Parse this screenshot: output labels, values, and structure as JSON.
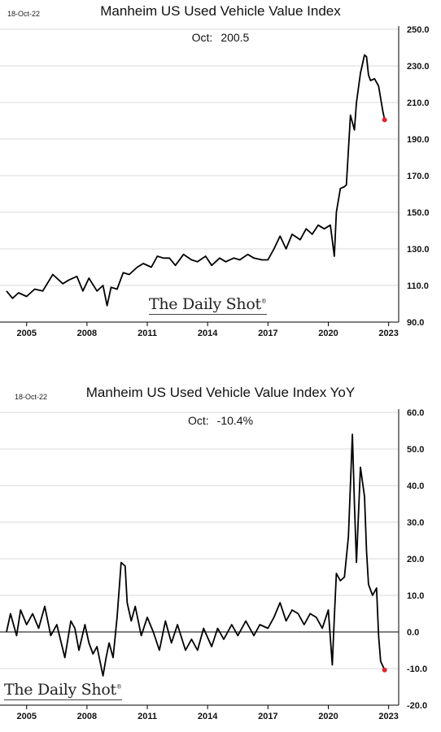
{
  "chart_data": [
    {
      "type": "line",
      "title": "Manheim US Used Vehicle Value Index",
      "date_stamp": "18-Oct-22",
      "latest": {
        "label": "Oct:",
        "value": "200.5"
      },
      "watermark": "The Daily Shot",
      "watermark_mark": "®",
      "x_ticks": [
        "2005",
        "2008",
        "2011",
        "2014",
        "2017",
        "2020",
        "2023"
      ],
      "y_ticks": [
        "90.0",
        "110.0",
        "130.0",
        "150.0",
        "170.0",
        "190.0",
        "210.0",
        "230.0",
        "250.0"
      ],
      "ylim": [
        90,
        250
      ],
      "xlim": [
        2004.0,
        2023.5
      ],
      "grid": true,
      "line_color": "#000000",
      "marker_color": "#e0262f",
      "series": [
        {
          "x": [
            2004.0,
            2004.3,
            2004.6,
            2005.0,
            2005.4,
            2005.8,
            2006.3,
            2006.8,
            2007.1,
            2007.5,
            2007.8,
            2008.1,
            2008.5,
            2008.8,
            2009.0,
            2009.2,
            2009.5,
            2009.8,
            2010.1,
            2010.5,
            2010.8,
            2011.2,
            2011.5,
            2011.8,
            2012.1,
            2012.4,
            2012.8,
            2013.2,
            2013.5,
            2013.9,
            2014.2,
            2014.6,
            2014.9,
            2015.3,
            2015.6,
            2016.0,
            2016.3,
            2016.7,
            2017.0,
            2017.3,
            2017.6,
            2017.9,
            2018.2,
            2018.6,
            2018.9,
            2019.2,
            2019.5,
            2019.8,
            2020.1,
            2020.3,
            2020.4,
            2020.6,
            2020.8,
            2020.9,
            2021.1,
            2021.3,
            2021.4,
            2021.6,
            2021.8,
            2021.9,
            2022.0,
            2022.1,
            2022.3,
            2022.5,
            2022.7,
            2022.8
          ],
          "y": [
            107,
            103,
            106,
            104,
            108,
            107,
            116,
            111,
            113,
            115,
            107,
            114,
            107,
            110,
            99,
            109,
            108,
            117,
            116,
            120,
            122,
            120,
            126,
            125,
            125,
            121,
            127,
            124,
            123,
            126,
            121,
            125,
            123,
            125,
            124,
            127,
            125,
            124,
            124,
            130,
            137,
            130,
            138,
            135,
            141,
            138,
            143,
            141,
            143,
            126,
            150,
            163,
            164,
            165,
            203,
            195,
            210,
            226,
            236,
            235,
            225,
            222,
            223,
            219,
            206,
            200.5
          ]
        }
      ]
    },
    {
      "type": "line",
      "title": "Manheim US Used Vehicle Value Index YoY",
      "date_stamp": "18-Oct-22",
      "latest": {
        "label": "Oct:",
        "value": "-10.4%"
      },
      "watermark": "The Daily Shot",
      "watermark_mark": "®",
      "x_ticks": [
        "2005",
        "2008",
        "2011",
        "2014",
        "2017",
        "2020",
        "2023"
      ],
      "y_ticks": [
        "-20.0",
        "-10.0",
        "0.0",
        "10.0",
        "20.0",
        "30.0",
        "40.0",
        "50.0",
        "60.0"
      ],
      "ylim": [
        -20,
        60
      ],
      "xlim": [
        2004.0,
        2023.5
      ],
      "grid": true,
      "zero_line": true,
      "line_color": "#000000",
      "marker_color": "#e0262f",
      "series": [
        {
          "x": [
            2004.0,
            2004.2,
            2004.5,
            2004.7,
            2005.0,
            2005.3,
            2005.6,
            2005.9,
            2006.2,
            2006.5,
            2006.9,
            2007.2,
            2007.4,
            2007.6,
            2007.9,
            2008.1,
            2008.3,
            2008.5,
            2008.8,
            2008.95,
            2009.1,
            2009.3,
            2009.5,
            2009.7,
            2009.9,
            2010.0,
            2010.2,
            2010.4,
            2010.7,
            2011.0,
            2011.3,
            2011.6,
            2011.9,
            2012.2,
            2012.5,
            2012.9,
            2013.2,
            2013.5,
            2013.8,
            2014.2,
            2014.5,
            2014.8,
            2015.2,
            2015.5,
            2015.9,
            2016.3,
            2016.6,
            2017.0,
            2017.3,
            2017.6,
            2017.9,
            2018.2,
            2018.5,
            2018.8,
            2019.1,
            2019.4,
            2019.7,
            2020.0,
            2020.2,
            2020.3,
            2020.4,
            2020.6,
            2020.8,
            2021.0,
            2021.2,
            2021.3,
            2021.4,
            2021.6,
            2021.8,
            2021.9,
            2022.0,
            2022.2,
            2022.4,
            2022.5,
            2022.6,
            2022.8
          ],
          "y": [
            0,
            5,
            -1,
            6,
            2,
            5,
            1,
            7,
            -1,
            2,
            -7,
            3,
            1,
            -5,
            2,
            -3,
            -6,
            -4,
            -12,
            -7,
            -3,
            -7,
            4,
            19,
            18,
            8,
            3,
            7,
            -1,
            4,
            0,
            -5,
            3,
            -3,
            2,
            -5,
            -2,
            -5,
            1,
            -4,
            1,
            -2,
            2,
            -1,
            3,
            -1,
            2,
            1,
            4,
            8,
            3,
            6,
            5,
            2,
            5,
            4,
            1,
            6,
            -9,
            4,
            16,
            14,
            15,
            26,
            54,
            35,
            19,
            45,
            37,
            22,
            13,
            10,
            12,
            -1,
            -8,
            -10.4
          ]
        }
      ]
    }
  ]
}
